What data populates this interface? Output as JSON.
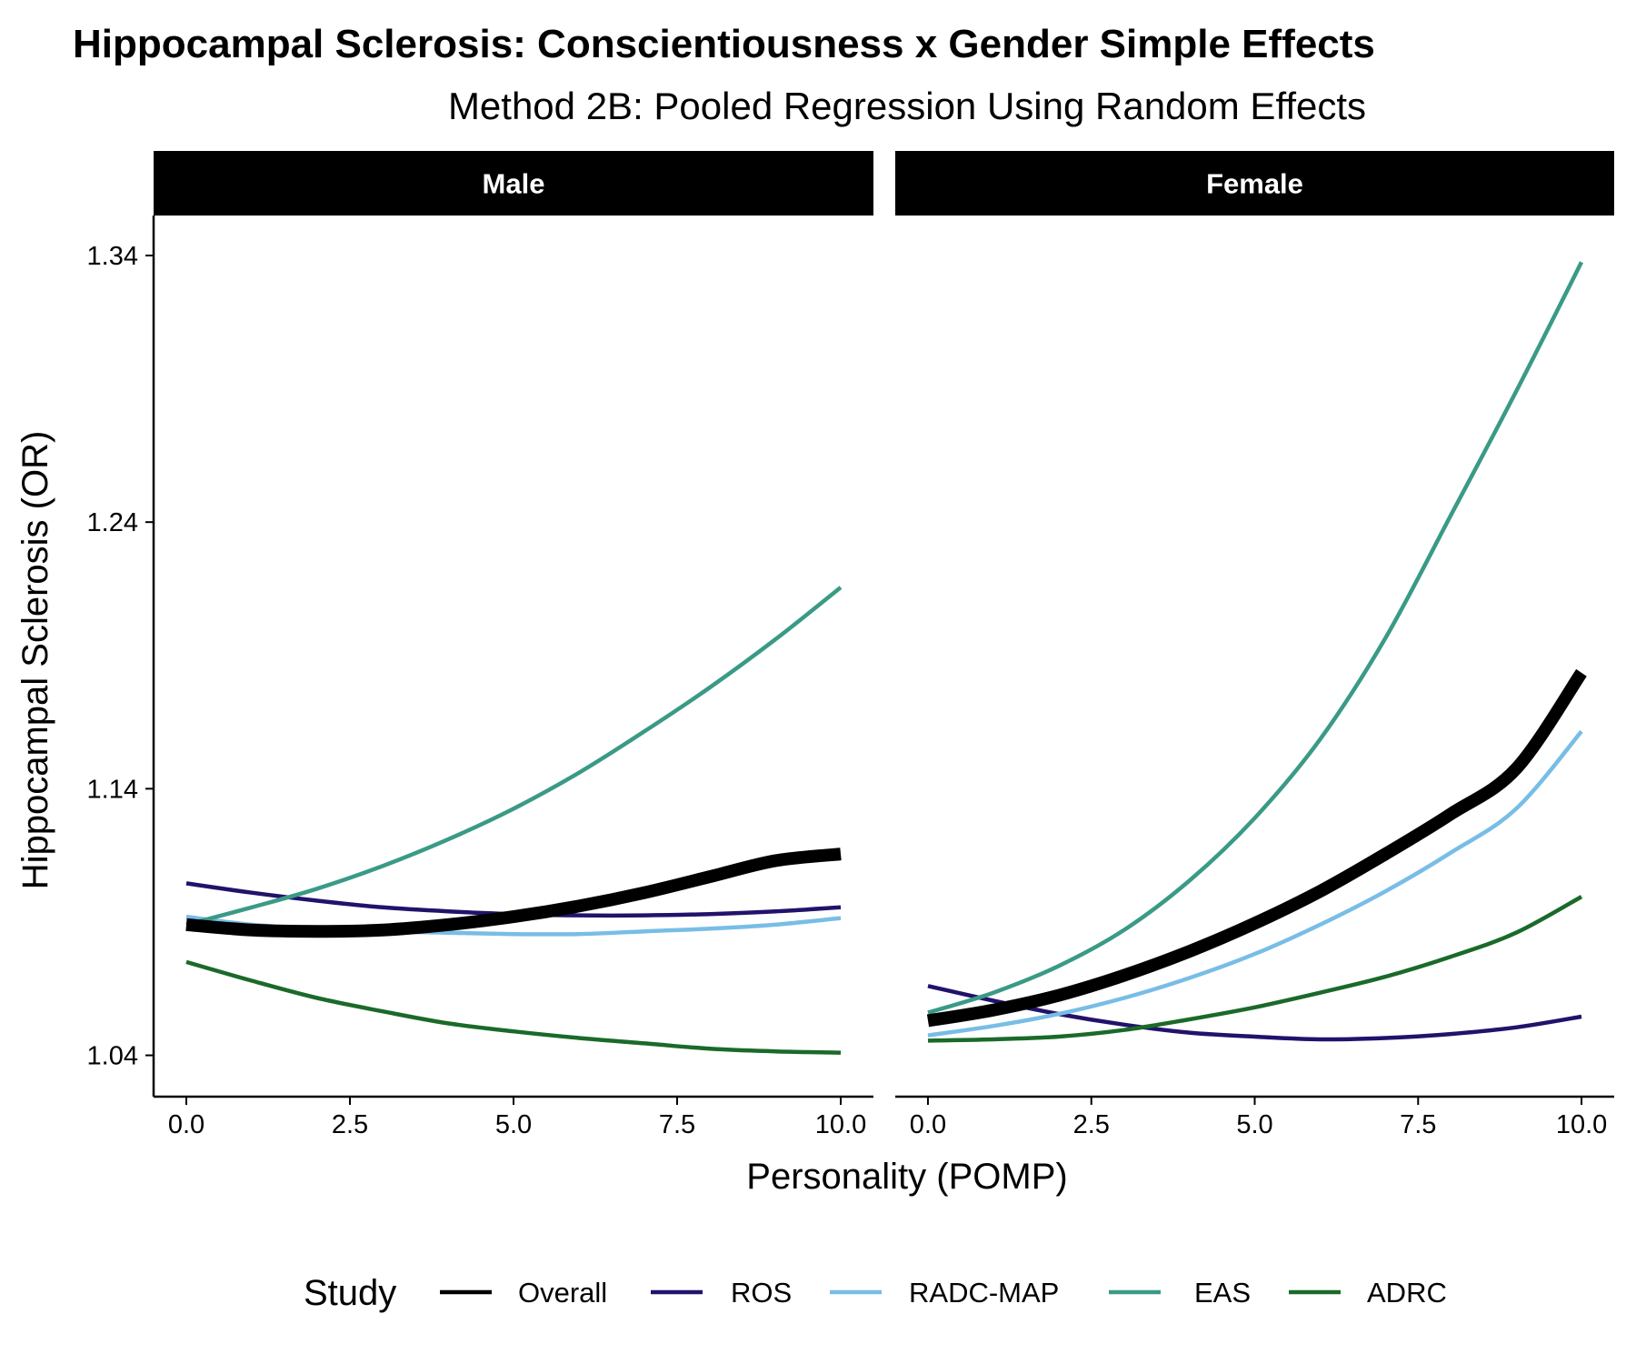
{
  "chart_data": {
    "type": "line",
    "title": "Hippocampal Sclerosis: Conscientiousness x Gender Simple Effects",
    "subtitle": "Method 2B: Pooled Regression Using Random Effects",
    "xlabel": "Personality (POMP)",
    "ylabel": "Hippocampal Sclerosis (OR)",
    "xlim": [
      -0.5,
      10.5
    ],
    "ylim": [
      1.0245,
      1.355
    ],
    "x_ticks": [
      0,
      2.5,
      5,
      7.5,
      10
    ],
    "x_tick_labels": [
      "0.0",
      "2.5",
      "5.0",
      "7.5",
      "10.0"
    ],
    "y_ticks": [
      1.04,
      1.14,
      1.24,
      1.34
    ],
    "y_tick_labels": [
      "1.04",
      "1.14",
      "1.24",
      "1.34"
    ],
    "grid": false,
    "legend_title": "Study",
    "legend_position": "bottom",
    "x": [
      0,
      1,
      2,
      3,
      4,
      5,
      6,
      7,
      8,
      9,
      10
    ],
    "panels": [
      {
        "label": "Male",
        "series": [
          {
            "name": "Overall",
            "values": [
              1.089,
              1.087,
              1.0865,
              1.087,
              1.089,
              1.092,
              1.096,
              1.101,
              1.107,
              1.113,
              1.1155
            ]
          },
          {
            "name": "ROS",
            "values": [
              1.1045,
              1.101,
              1.098,
              1.0955,
              1.094,
              1.093,
              1.0925,
              1.0925,
              1.093,
              1.094,
              1.0955
            ]
          },
          {
            "name": "RADC-MAP",
            "values": [
              1.092,
              1.089,
              1.0875,
              1.0865,
              1.086,
              1.0855,
              1.0855,
              1.0865,
              1.0875,
              1.089,
              1.0915
            ]
          },
          {
            "name": "EAS",
            "values": [
              1.089,
              1.0955,
              1.1025,
              1.111,
              1.121,
              1.1325,
              1.146,
              1.1615,
              1.178,
              1.196,
              1.2155
            ]
          },
          {
            "name": "ADRC",
            "values": [
              1.075,
              1.068,
              1.0615,
              1.0565,
              1.052,
              1.049,
              1.0465,
              1.0445,
              1.0425,
              1.0415,
              1.041
            ]
          }
        ]
      },
      {
        "label": "Female",
        "series": [
          {
            "name": "Overall",
            "values": [
              1.053,
              1.057,
              1.0625,
              1.07,
              1.079,
              1.0895,
              1.1015,
              1.1155,
              1.1305,
              1.1475,
              1.1835
            ]
          },
          {
            "name": "ROS",
            "values": [
              1.066,
              1.0605,
              1.0555,
              1.0515,
              1.0485,
              1.047,
              1.046,
              1.0465,
              1.048,
              1.0505,
              1.0545
            ]
          },
          {
            "name": "RADC-MAP",
            "values": [
              1.0475,
              1.051,
              1.0555,
              1.0615,
              1.069,
              1.078,
              1.089,
              1.1015,
              1.116,
              1.1325,
              1.1615
            ]
          },
          {
            "name": "EAS",
            "values": [
              1.056,
              1.0635,
              1.0735,
              1.087,
              1.1055,
              1.129,
              1.1585,
              1.1965,
              1.2425,
              1.289,
              1.3375
            ]
          },
          {
            "name": "ADRC",
            "values": [
              1.0455,
              1.046,
              1.047,
              1.0495,
              1.0535,
              1.058,
              1.0635,
              1.0695,
              1.077,
              1.086,
              1.0995
            ]
          }
        ]
      }
    ],
    "series_styles": [
      {
        "name": "Overall",
        "color": "#000000"
      },
      {
        "name": "ROS",
        "color": "#22126b"
      },
      {
        "name": "RADC-MAP",
        "color": "#78bde6"
      },
      {
        "name": "EAS",
        "color": "#3a9a86"
      },
      {
        "name": "ADRC",
        "color": "#1a6a2a"
      }
    ]
  }
}
